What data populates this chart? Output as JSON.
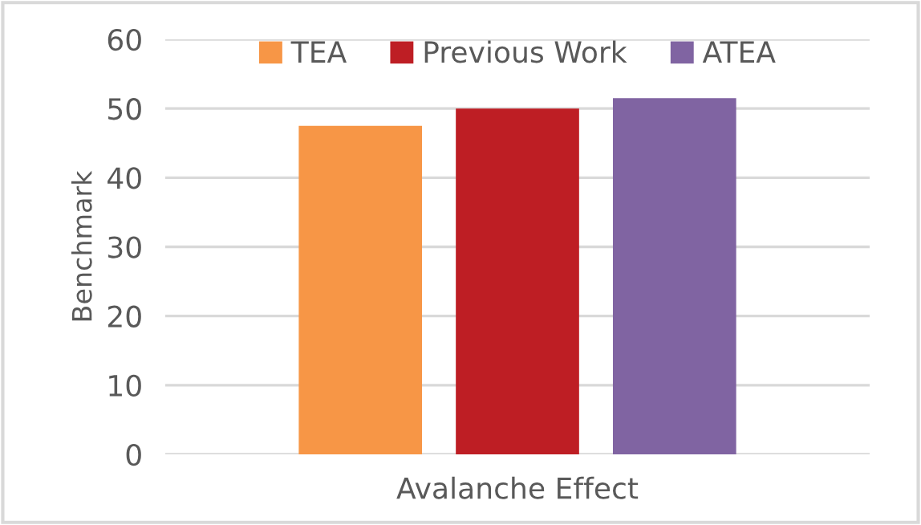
{
  "chart_data": {
    "type": "bar",
    "ylabel": "Benchmark",
    "categories": [
      "Avalanche Effect"
    ],
    "series": [
      {
        "name": "TEA",
        "color": "#f79646",
        "values": [
          47.5
        ]
      },
      {
        "name": "Previous Work",
        "color": "#be1e24",
        "values": [
          50
        ]
      },
      {
        "name": "ATEA",
        "color": "#8064a2",
        "values": [
          51.5
        ]
      }
    ],
    "ylim": [
      0,
      60
    ],
    "yticks": [
      0,
      10,
      20,
      30,
      40,
      50,
      60
    ],
    "grid": "y",
    "legend": "top"
  }
}
